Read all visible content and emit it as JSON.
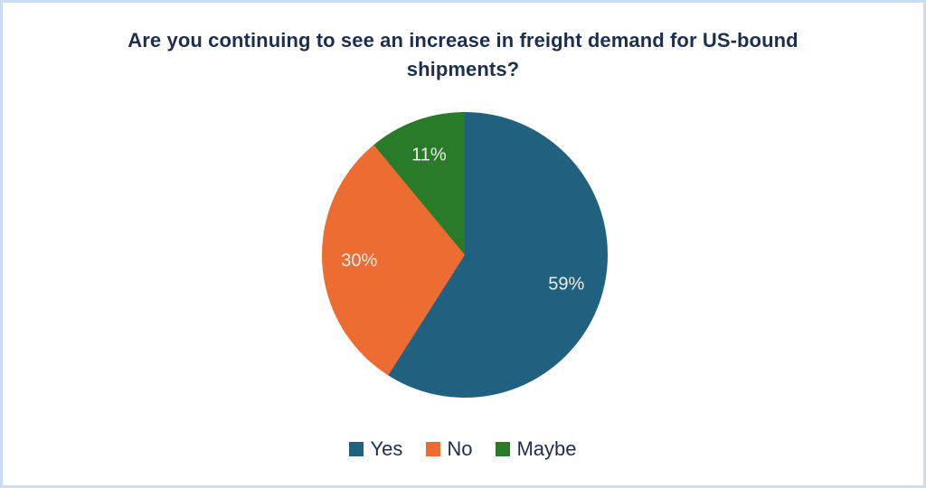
{
  "frame": {
    "border_color": "#c9ddf3",
    "background_color": "#ffffff"
  },
  "title": {
    "text": "Are you continuing to see an increase in freight demand for US-bound shipments?",
    "color": "#1e2f4e"
  },
  "chart_data": {
    "type": "pie",
    "title": "Are you continuing to see an increase in freight demand for US-bound shipments?",
    "categories": [
      "Yes",
      "No",
      "Maybe"
    ],
    "values": [
      59,
      30,
      11
    ],
    "labels": [
      "59%",
      "30%",
      "11%"
    ],
    "unit": "%",
    "colors": [
      "#206180",
      "#ec6c32",
      "#297a29"
    ],
    "label_color": "#ededed",
    "start_angle_deg": 0,
    "direction": "clockwise",
    "legend_position": "bottom",
    "label_radius_fraction": 0.74
  },
  "legend": {
    "items": [
      {
        "label": "Yes",
        "color": "#206180"
      },
      {
        "label": "No",
        "color": "#ec6c32"
      },
      {
        "label": "Maybe",
        "color": "#297a29"
      }
    ]
  }
}
